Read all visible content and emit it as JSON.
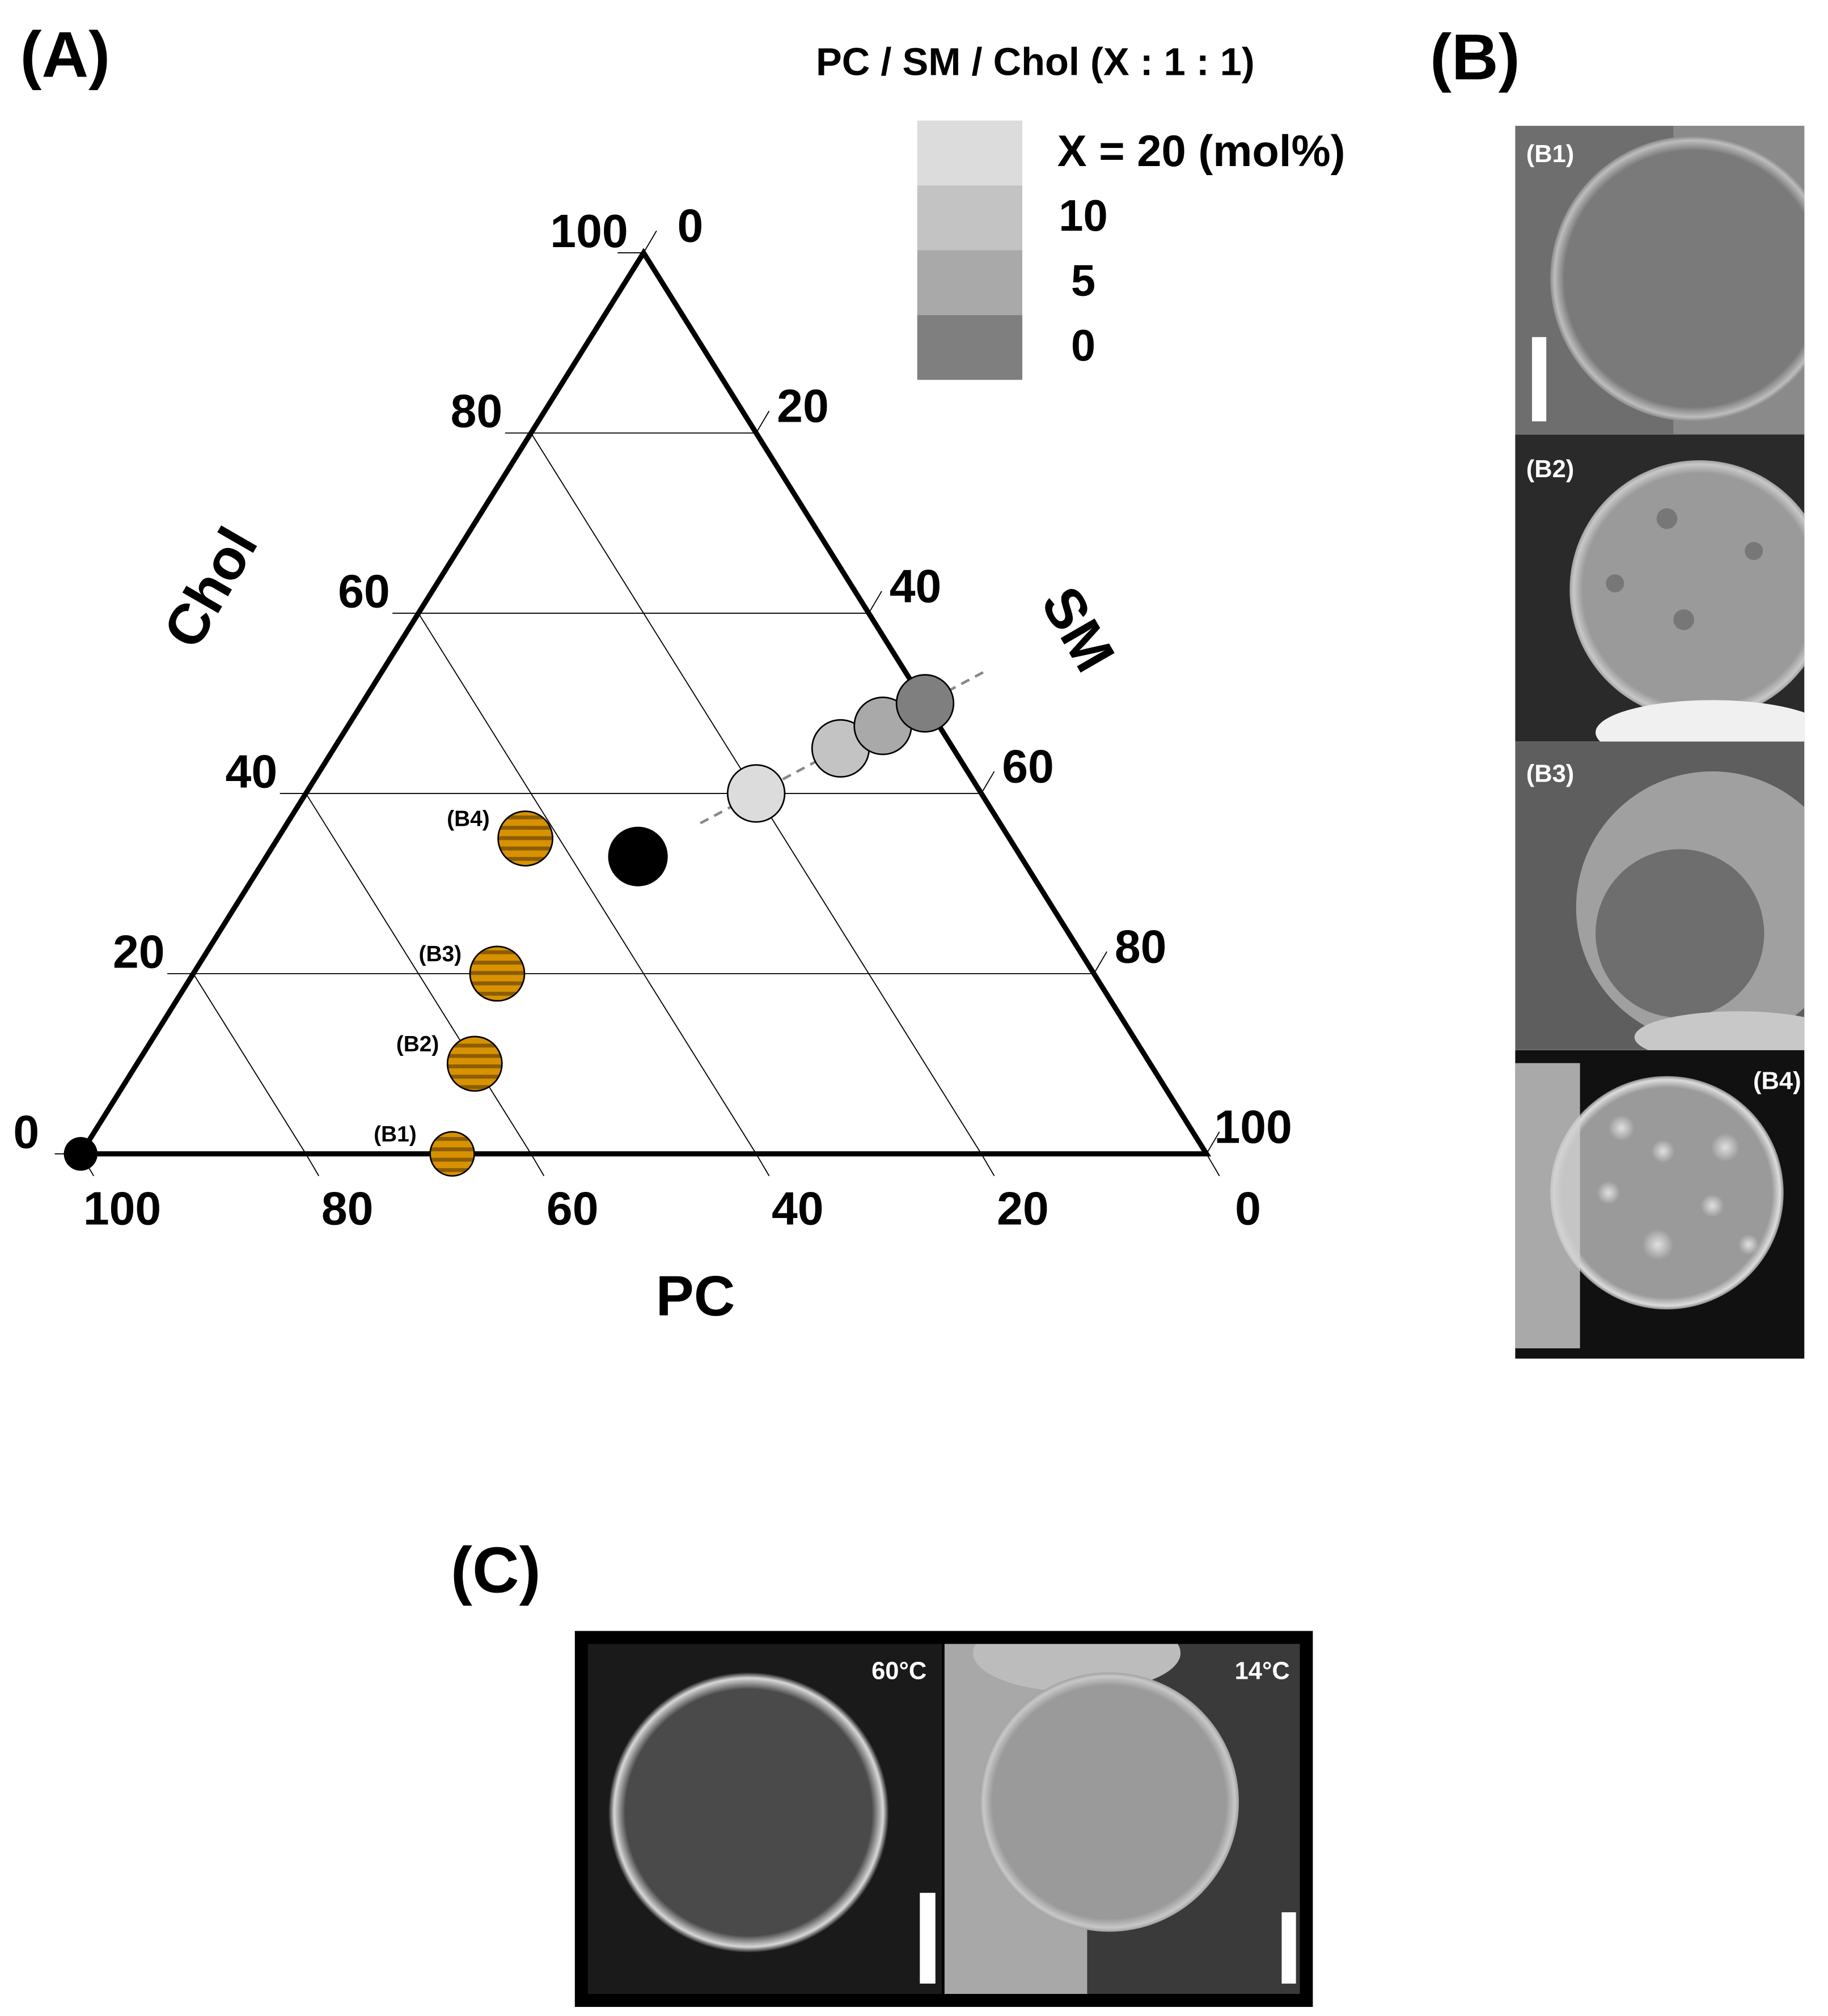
{
  "panel_labels": [
    "(A)",
    "(B)",
    "(C)"
  ],
  "chart_data": {
    "type": "ternary",
    "axes": [
      {
        "name": "PC",
        "lim": [
          0,
          100
        ],
        "ticks": [
          100,
          80,
          60,
          40,
          20,
          0
        ],
        "grid": true
      },
      {
        "name": "SM",
        "lim": [
          0,
          100
        ],
        "ticks": [
          0,
          20,
          40,
          60,
          80,
          100
        ],
        "grid": false
      },
      {
        "name": "Chol",
        "lim": [
          0,
          100
        ],
        "ticks": [
          0,
          20,
          40,
          60,
          80,
          100
        ],
        "grid": true
      }
    ],
    "legend_title": "PC / SM / Chol  (X : 1 : 1)",
    "series": [
      {
        "name": "X = 20 (mol%)",
        "color": "#dcdcdc",
        "values": [
          20,
          40,
          40
        ]
      },
      {
        "name": "10",
        "color": "#c3c3c3",
        "values": [
          10,
          45,
          45
        ]
      },
      {
        "name": "5",
        "color": "#a9a9a9",
        "values": [
          5,
          47.5,
          47.5
        ]
      },
      {
        "name": "0",
        "color": "#7f7f7f",
        "values": [
          0,
          50,
          50
        ]
      }
    ],
    "labeled_points": [
      {
        "label": "(B1)",
        "values": [
          67,
          33,
          0
        ]
      },
      {
        "label": "(B2)",
        "values": [
          60,
          30,
          10
        ]
      },
      {
        "label": "(B3)",
        "values": [
          53,
          27,
          20
        ]
      },
      {
        "label": "(B4)",
        "values": [
          43,
          22,
          35
        ]
      }
    ],
    "points": [
      {
        "values": [
          100,
          0,
          0
        ]
      },
      {
        "values": [
          33,
          33,
          33
        ]
      }
    ],
    "point_color": "#000000"
  },
  "panel_b": {
    "images": [
      "(B1)",
      "(B2)",
      "(B3)",
      "(B4)"
    ]
  },
  "panel_c": {
    "images": [
      "60°C",
      "14°C"
    ]
  }
}
